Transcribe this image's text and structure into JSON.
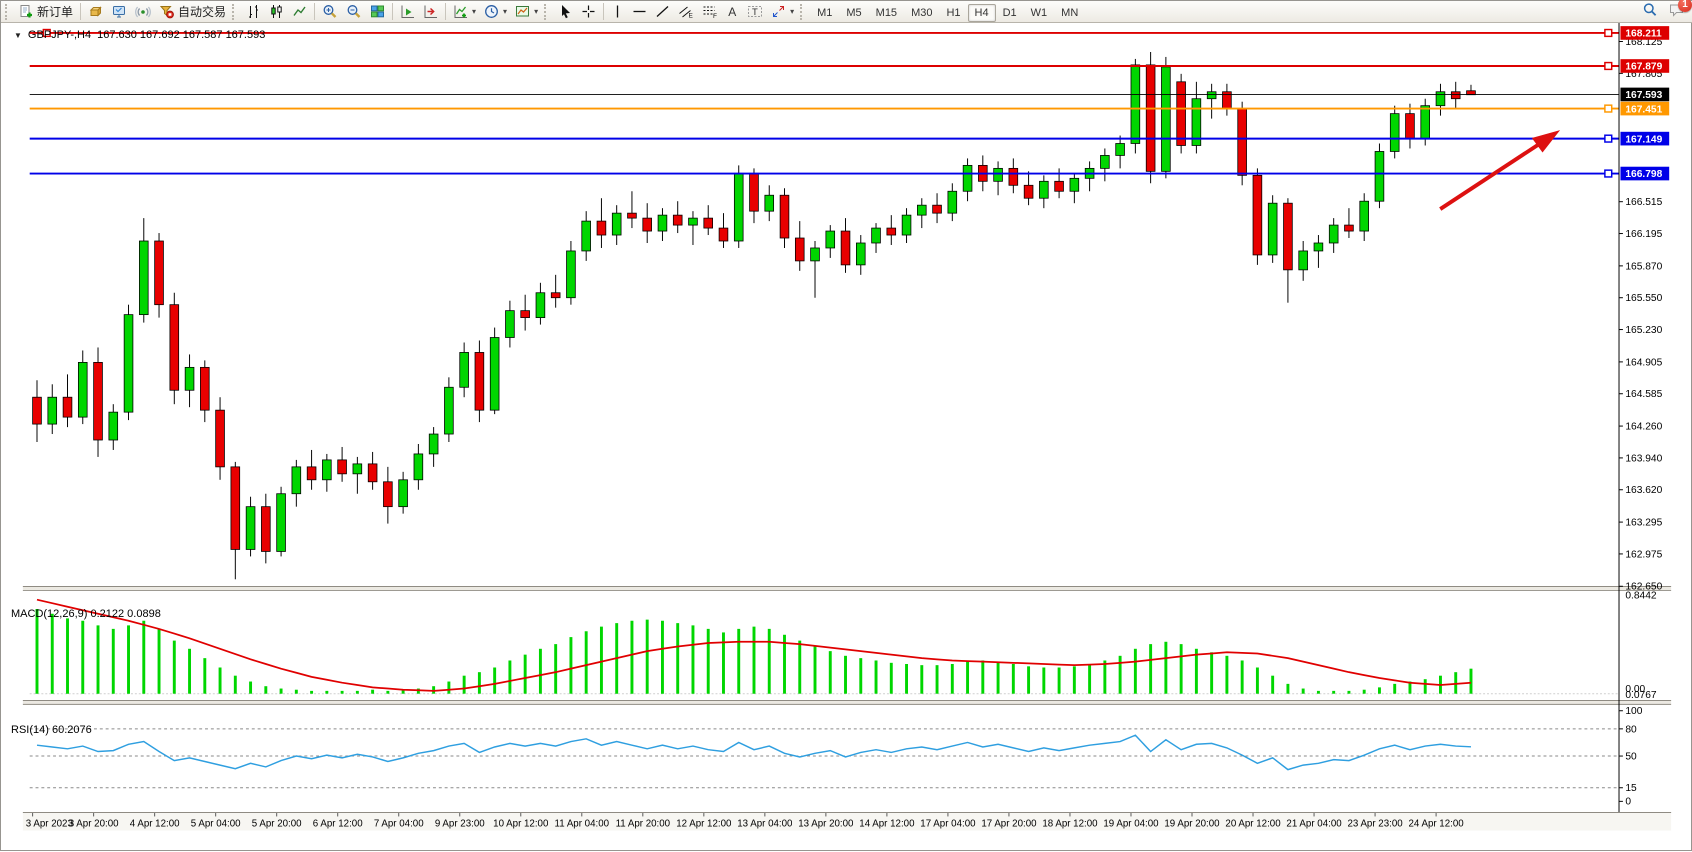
{
  "toolbar": {
    "new_order_label": "新订单",
    "auto_trading_label": "自动交易",
    "timeframes": [
      "M1",
      "M5",
      "M15",
      "M30",
      "H1",
      "H4",
      "D1",
      "W1",
      "MN"
    ],
    "active_timeframe": "H4",
    "notification_count": "1"
  },
  "title": {
    "symbol": "GBPJPY-,H4",
    "ohlc": "167.630 167.692 167.587 167.593"
  },
  "macd_label": "MACD(12,26,9) 0.2122 0.0898",
  "rsi_label": "RSI(14) 60.2076",
  "chart_data": {
    "type": "candlestick",
    "symbol": "GBPJPY-",
    "timeframe": "H4",
    "price_range": [
      162.642,
      168.311
    ],
    "colors": {
      "up": "#00d600",
      "down": "#e80000",
      "wick": "#000000",
      "macd_hist": "#00d600",
      "macd_signal": "#e00000",
      "rsi_line": "#2f9fe0",
      "arrow": "#dd1111"
    },
    "hlines": [
      {
        "price": 168.211,
        "color": "#dd0000",
        "w": 2,
        "left_handle": true,
        "right_handle": true
      },
      {
        "price": 167.879,
        "color": "#dd0000",
        "w": 2,
        "left_handle": false,
        "right_handle": true
      },
      {
        "price": 167.593,
        "color": "#000000",
        "w": 1,
        "left_handle": false,
        "right_handle": false
      },
      {
        "price": 167.451,
        "color": "#ff9800",
        "w": 2,
        "left_handle": false,
        "right_handle": true
      },
      {
        "price": 167.149,
        "color": "#0000e8",
        "w": 2,
        "left_handle": false,
        "right_handle": true
      },
      {
        "price": 166.798,
        "color": "#0000e8",
        "w": 2,
        "left_handle": false,
        "right_handle": true
      }
    ],
    "price_ticks": [
      "168.125",
      "167.805",
      "166.515",
      "166.195",
      "165.870",
      "165.550",
      "165.230",
      "164.905",
      "164.585",
      "164.260",
      "163.940",
      "163.620",
      "163.295",
      "162.975",
      "162.650"
    ],
    "macd_axis": {
      "top": "0.8442",
      "bottom": [
        "0.00",
        "0.0767"
      ]
    },
    "rsi_axis": {
      "labels": [
        "100",
        "80",
        "50",
        "15",
        "0"
      ],
      "values": [
        100,
        80,
        50,
        15,
        0
      ],
      "level_lines": [
        80,
        50,
        15
      ]
    },
    "time_labels": [
      "3 Apr 2023",
      "3 Apr 20:00",
      "4 Apr 12:00",
      "5 Apr 04:00",
      "5 Apr 20:00",
      "6 Apr 12:00",
      "7 Apr 04:00",
      "9 Apr 23:00",
      "10 Apr 12:00",
      "11 Apr 04:00",
      "11 Apr 20:00",
      "12 Apr 12:00",
      "13 Apr 04:00",
      "13 Apr 20:00",
      "14 Apr 12:00",
      "17 Apr 04:00",
      "17 Apr 20:00",
      "18 Apr 12:00",
      "19 Apr 04:00",
      "19 Apr 20:00",
      "20 Apr 12:00",
      "21 Apr 04:00",
      "23 Apr 23:00",
      "24 Apr 12:00"
    ],
    "annotation_arrow": {
      "from": [
        1455,
        213
      ],
      "to": [
        1578,
        132
      ]
    },
    "candles": [
      [
        164.55,
        164.72,
        164.1,
        164.28
      ],
      [
        164.28,
        164.68,
        164.18,
        164.55
      ],
      [
        164.55,
        164.78,
        164.25,
        164.35
      ],
      [
        164.35,
        165.02,
        164.28,
        164.9
      ],
      [
        164.9,
        165.05,
        163.95,
        164.12
      ],
      [
        164.12,
        164.48,
        164.02,
        164.4
      ],
      [
        164.4,
        165.48,
        164.32,
        165.38
      ],
      [
        165.38,
        166.35,
        165.3,
        166.12
      ],
      [
        166.12,
        166.2,
        165.35,
        165.48
      ],
      [
        165.48,
        165.6,
        164.48,
        164.62
      ],
      [
        164.62,
        164.98,
        164.45,
        164.85
      ],
      [
        164.85,
        164.92,
        164.3,
        164.42
      ],
      [
        164.42,
        164.55,
        163.72,
        163.85
      ],
      [
        163.85,
        163.9,
        162.72,
        163.02
      ],
      [
        163.02,
        163.55,
        162.95,
        163.45
      ],
      [
        163.45,
        163.58,
        162.88,
        163.0
      ],
      [
        163.0,
        163.65,
        162.95,
        163.58
      ],
      [
        163.58,
        163.92,
        163.45,
        163.85
      ],
      [
        163.85,
        164.02,
        163.62,
        163.72
      ],
      [
        163.72,
        163.98,
        163.6,
        163.92
      ],
      [
        163.92,
        164.05,
        163.7,
        163.78
      ],
      [
        163.78,
        163.95,
        163.58,
        163.88
      ],
      [
        163.88,
        164.0,
        163.62,
        163.7
      ],
      [
        163.7,
        163.85,
        163.28,
        163.45
      ],
      [
        163.45,
        163.8,
        163.38,
        163.72
      ],
      [
        163.72,
        164.08,
        163.62,
        163.98
      ],
      [
        163.98,
        164.25,
        163.85,
        164.18
      ],
      [
        164.18,
        164.75,
        164.1,
        164.65
      ],
      [
        164.65,
        165.1,
        164.55,
        165.0
      ],
      [
        165.0,
        165.12,
        164.3,
        164.42
      ],
      [
        164.42,
        165.25,
        164.38,
        165.15
      ],
      [
        165.15,
        165.52,
        165.05,
        165.42
      ],
      [
        165.42,
        165.58,
        165.22,
        165.35
      ],
      [
        165.35,
        165.7,
        165.28,
        165.6
      ],
      [
        165.6,
        165.78,
        165.45,
        165.55
      ],
      [
        165.55,
        166.12,
        165.48,
        166.02
      ],
      [
        166.02,
        166.42,
        165.92,
        166.32
      ],
      [
        166.32,
        166.55,
        166.05,
        166.18
      ],
      [
        166.18,
        166.48,
        166.08,
        166.4
      ],
      [
        166.4,
        166.62,
        166.25,
        166.35
      ],
      [
        166.35,
        166.5,
        166.1,
        166.22
      ],
      [
        166.22,
        166.45,
        166.12,
        166.38
      ],
      [
        166.38,
        166.52,
        166.2,
        166.28
      ],
      [
        166.28,
        166.42,
        166.08,
        166.35
      ],
      [
        166.35,
        166.48,
        166.18,
        166.25
      ],
      [
        166.25,
        166.4,
        166.05,
        166.12
      ],
      [
        166.12,
        166.88,
        166.05,
        166.8
      ],
      [
        166.8,
        166.85,
        166.3,
        166.42
      ],
      [
        166.42,
        166.68,
        166.32,
        166.58
      ],
      [
        166.58,
        166.65,
        166.05,
        166.15
      ],
      [
        166.15,
        166.32,
        165.82,
        165.92
      ],
      [
        165.92,
        166.12,
        165.55,
        166.05
      ],
      [
        166.05,
        166.28,
        165.95,
        166.22
      ],
      [
        166.22,
        166.35,
        165.8,
        165.88
      ],
      [
        165.88,
        166.18,
        165.78,
        166.1
      ],
      [
        166.1,
        166.3,
        166.0,
        166.25
      ],
      [
        166.25,
        166.38,
        166.08,
        166.18
      ],
      [
        166.18,
        166.45,
        166.1,
        166.38
      ],
      [
        166.38,
        166.55,
        166.25,
        166.48
      ],
      [
        166.48,
        166.6,
        166.3,
        166.4
      ],
      [
        166.4,
        166.7,
        166.32,
        166.62
      ],
      [
        166.62,
        166.95,
        166.52,
        166.88
      ],
      [
        166.88,
        166.98,
        166.62,
        166.72
      ],
      [
        166.72,
        166.92,
        166.58,
        166.85
      ],
      [
        166.85,
        166.95,
        166.6,
        166.68
      ],
      [
        166.68,
        166.82,
        166.48,
        166.55
      ],
      [
        166.55,
        166.78,
        166.45,
        166.72
      ],
      [
        166.72,
        166.85,
        166.55,
        166.62
      ],
      [
        166.62,
        166.8,
        166.5,
        166.75
      ],
      [
        166.75,
        166.92,
        166.62,
        166.85
      ],
      [
        166.85,
        167.05,
        166.72,
        166.98
      ],
      [
        166.98,
        167.18,
        166.85,
        167.1
      ],
      [
        167.1,
        167.95,
        167.0,
        167.89
      ],
      [
        167.89,
        168.02,
        166.7,
        166.82
      ],
      [
        166.82,
        167.97,
        166.75,
        167.87
      ],
      [
        167.72,
        167.8,
        167.0,
        167.08
      ],
      [
        167.08,
        167.72,
        167.0,
        167.55
      ],
      [
        167.55,
        167.7,
        167.35,
        167.62
      ],
      [
        167.62,
        167.7,
        167.38,
        167.45
      ],
      [
        167.45,
        167.52,
        166.68,
        166.78
      ],
      [
        166.78,
        166.85,
        165.88,
        165.98
      ],
      [
        165.98,
        166.58,
        165.9,
        166.5
      ],
      [
        166.5,
        166.55,
        165.5,
        165.83
      ],
      [
        165.83,
        166.12,
        165.72,
        166.02
      ],
      [
        166.02,
        166.18,
        165.85,
        166.1
      ],
      [
        166.1,
        166.35,
        166.0,
        166.28
      ],
      [
        166.28,
        166.45,
        166.15,
        166.22
      ],
      [
        166.22,
        166.6,
        166.12,
        166.52
      ],
      [
        166.52,
        167.1,
        166.45,
        167.02
      ],
      [
        167.02,
        167.48,
        166.95,
        167.4
      ],
      [
        167.4,
        167.5,
        167.05,
        167.15
      ],
      [
        167.15,
        167.55,
        167.08,
        167.48
      ],
      [
        167.48,
        167.7,
        167.38,
        167.62
      ],
      [
        167.62,
        167.72,
        167.45,
        167.55
      ],
      [
        167.63,
        167.69,
        167.59,
        167.59
      ]
    ],
    "macd_hist": [
      0.72,
      0.68,
      0.64,
      0.62,
      0.58,
      0.55,
      0.58,
      0.62,
      0.55,
      0.45,
      0.38,
      0.3,
      0.22,
      0.15,
      0.1,
      0.06,
      0.04,
      0.03,
      0.02,
      0.02,
      0.02,
      0.02,
      0.03,
      0.02,
      0.03,
      0.04,
      0.06,
      0.1,
      0.15,
      0.18,
      0.22,
      0.28,
      0.33,
      0.38,
      0.42,
      0.48,
      0.53,
      0.57,
      0.6,
      0.62,
      0.63,
      0.62,
      0.6,
      0.58,
      0.55,
      0.52,
      0.55,
      0.57,
      0.55,
      0.5,
      0.45,
      0.4,
      0.36,
      0.32,
      0.3,
      0.28,
      0.26,
      0.25,
      0.24,
      0.24,
      0.25,
      0.27,
      0.28,
      0.27,
      0.25,
      0.23,
      0.22,
      0.22,
      0.23,
      0.25,
      0.28,
      0.32,
      0.38,
      0.42,
      0.44,
      0.42,
      0.38,
      0.35,
      0.32,
      0.28,
      0.22,
      0.15,
      0.08,
      0.04,
      0.02,
      0.02,
      0.02,
      0.03,
      0.05,
      0.08,
      0.1,
      0.12,
      0.15,
      0.18,
      0.21
    ],
    "macd_signal": [
      0.8,
      0.77,
      0.74,
      0.71,
      0.68,
      0.65,
      0.62,
      0.585,
      0.55,
      0.51,
      0.47,
      0.425,
      0.38,
      0.335,
      0.29,
      0.25,
      0.21,
      0.175,
      0.14,
      0.115,
      0.09,
      0.07,
      0.05,
      0.04,
      0.03,
      0.025,
      0.02,
      0.03,
      0.04,
      0.06,
      0.08,
      0.105,
      0.13,
      0.155,
      0.18,
      0.21,
      0.24,
      0.27,
      0.3,
      0.33,
      0.36,
      0.38,
      0.4,
      0.415,
      0.43,
      0.435,
      0.44,
      0.44,
      0.44,
      0.43,
      0.42,
      0.405,
      0.39,
      0.375,
      0.36,
      0.345,
      0.33,
      0.315,
      0.3,
      0.29,
      0.28,
      0.275,
      0.27,
      0.265,
      0.26,
      0.255,
      0.25,
      0.245,
      0.24,
      0.245,
      0.25,
      0.26,
      0.27,
      0.285,
      0.3,
      0.315,
      0.33,
      0.34,
      0.35,
      0.345,
      0.34,
      0.32,
      0.3,
      0.27,
      0.24,
      0.21,
      0.18,
      0.155,
      0.13,
      0.11,
      0.09,
      0.08,
      0.07,
      0.08,
      0.09
    ],
    "rsi_values": [
      62,
      60,
      58,
      61,
      55,
      56,
      63,
      66,
      55,
      45,
      48,
      44,
      40,
      36,
      42,
      38,
      45,
      50,
      47,
      51,
      48,
      52,
      49,
      44,
      48,
      53,
      56,
      61,
      64,
      54,
      60,
      64,
      61,
      64,
      61,
      66,
      69,
      62,
      66,
      62,
      58,
      62,
      58,
      61,
      57,
      55,
      65,
      57,
      61,
      53,
      49,
      53,
      56,
      49,
      54,
      57,
      54,
      58,
      60,
      57,
      61,
      65,
      60,
      63,
      59,
      55,
      59,
      56,
      59,
      62,
      64,
      66,
      73,
      55,
      68,
      57,
      63,
      64,
      59,
      51,
      42,
      48,
      35,
      40,
      42,
      46,
      45,
      51,
      58,
      62,
      57,
      61,
      63,
      61,
      60.2
    ]
  }
}
